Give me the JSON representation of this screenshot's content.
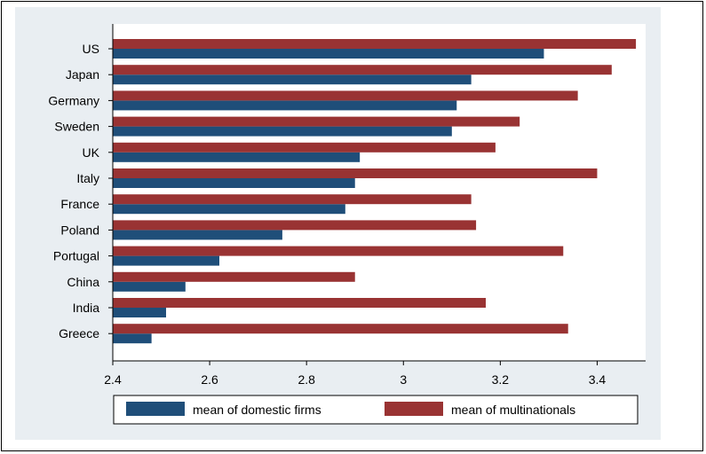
{
  "chart_data": {
    "type": "bar",
    "orientation": "horizontal",
    "title": "",
    "xlabel": "",
    "ylabel": "",
    "categories": [
      "US",
      "Japan",
      "Germany",
      "Sweden",
      "UK",
      "Italy",
      "France",
      "Poland",
      "Portugal",
      "China",
      "India",
      "Greece"
    ],
    "series": [
      {
        "name": "mean of domestic firms",
        "color": "#1f4e79",
        "values": [
          3.29,
          3.14,
          3.11,
          3.1,
          2.91,
          2.9,
          2.88,
          2.75,
          2.62,
          2.55,
          2.51,
          2.48
        ]
      },
      {
        "name": "mean of multinationals",
        "color": "#993333",
        "values": [
          3.48,
          3.43,
          3.36,
          3.24,
          3.19,
          3.4,
          3.14,
          3.15,
          3.33,
          2.9,
          3.17,
          3.34
        ]
      }
    ],
    "xlim": [
      2.4,
      3.5
    ],
    "xticks": [
      "2.4",
      "2.6",
      "2.8",
      "3",
      "3.2",
      "3.4"
    ],
    "grid": false,
    "legend_position": "bottom"
  }
}
